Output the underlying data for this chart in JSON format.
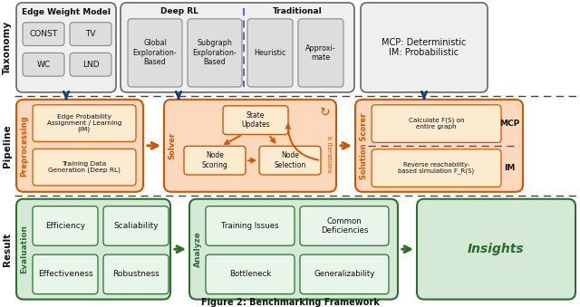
{
  "title": "Figure 2: Benchmarking Framework",
  "bg_color": "#ffffff",
  "row_labels": [
    "Taxonomy",
    "Pipeline",
    "Result"
  ],
  "taxonomy": {
    "ewm_title": "Edge Weight Model",
    "ewm_items": [
      [
        "CONST",
        "TV"
      ],
      [
        "WC",
        "LND"
      ]
    ],
    "deeprl_title": "Deep RL",
    "deeprl_items": [
      "Global\nExploration-\nBased",
      "Subgraph\nExploration-\nBased"
    ],
    "trad_title": "Traditional",
    "trad_items": [
      "Heuristic",
      "Approxi-\nmate"
    ],
    "mcpim_text": "MCP: Deterministic\nIM: Probabilistic",
    "box_bg": "#efefef",
    "box_border": "#666666",
    "inner_bg": "#dddddd",
    "inner_border": "#888888"
  },
  "pipeline": {
    "arrow_color": "#d45500",
    "blue_arrow": "#1a3a80",
    "box_bg": "#fcd9bc",
    "box_border": "#d45500",
    "inner_bg": "#fdebd0",
    "inner_border": "#d45500",
    "pre_item1": "Edge Probability\nAssignment / Learning\n(IM)",
    "pre_item2": "Training Data\nGeneration (Deep RL)",
    "pre_label": "Preprocessing",
    "sol_label": "Solver",
    "state_updates": "State\nUpdates",
    "node_scoring": "Node\nScoring",
    "node_selection": "Node\nSelection",
    "k_label": "k iterations",
    "ss_label": "Solution Scorer",
    "mcp_text": "Calculate F(S) on\nentire graph",
    "im_text": "Reverse reachability-\nbased simulation F_R(S)",
    "mcp_label": "MCP",
    "im_label": "IM"
  },
  "result": {
    "arrow_color": "#2d6e2d",
    "box_bg": "#d5ead6",
    "box_border": "#2d6e2d",
    "inner_bg": "#e8f5e9",
    "inner_border": "#2d6e2d",
    "eval_label": "Evaluation",
    "eval_items": [
      [
        "Efficiency",
        "Scaliability"
      ],
      [
        "Effectiveness",
        "Robustness"
      ]
    ],
    "analyze_label": "Analyze",
    "analyze_items": [
      [
        "Training Issues",
        "Common\nDeficiencies"
      ],
      [
        "Bottleneck",
        "Generalizability"
      ]
    ],
    "insights": "Insights"
  }
}
